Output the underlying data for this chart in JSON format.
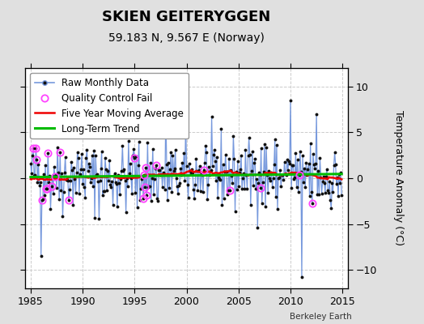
{
  "title": "SKIEN GEITERYGGEN",
  "subtitle": "59.183 N, 9.567 E (Norway)",
  "ylabel": "Temperature Anomaly (°C)",
  "xlabel_credit": "Berkeley Earth",
  "ylim": [
    -12,
    12
  ],
  "xlim": [
    1984.5,
    2015.5
  ],
  "yticks": [
    -10,
    -5,
    0,
    5,
    10
  ],
  "xticks": [
    1985,
    1990,
    1995,
    2000,
    2005,
    2010,
    2015
  ],
  "bg_color": "#e0e0e0",
  "plot_bg_color": "#ffffff",
  "raw_line_color": "#7799dd",
  "raw_dot_color": "#111111",
  "ma_color": "#ee0000",
  "trend_color": "#00bb00",
  "qc_color": "#ff44ff",
  "title_fontsize": 13,
  "subtitle_fontsize": 10,
  "legend_fontsize": 8.5,
  "tick_fontsize": 9,
  "ylabel_fontsize": 9,
  "grid_color": "#cccccc",
  "start_year": 1985,
  "n_months": 360,
  "seed": 42,
  "ma_window": 60,
  "qc_indices": [
    3,
    6,
    7,
    13,
    18,
    19,
    20,
    24,
    28,
    34,
    44,
    120,
    130,
    131,
    132,
    133,
    134,
    145,
    200,
    230,
    265,
    310,
    325
  ]
}
